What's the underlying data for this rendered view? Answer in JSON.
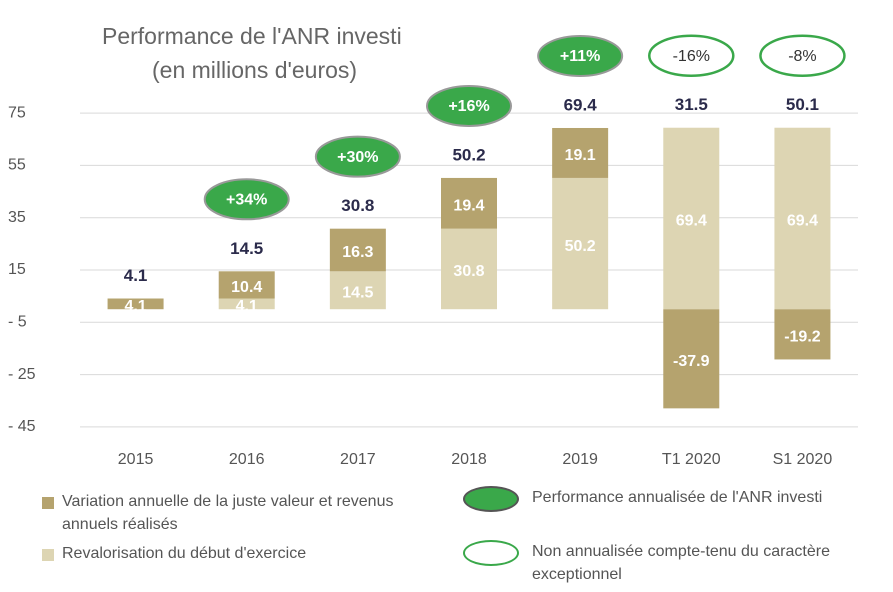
{
  "chart_data": {
    "type": "stacked_bar",
    "title": "Performance de l'ANR investi",
    "subtitle": "(en millions d'euros)",
    "categories": [
      "2015",
      "2016",
      "2017",
      "2018",
      "2019",
      "T1 2020",
      "S1 2020"
    ],
    "series": [
      {
        "name": "Revalorisation du début d'exercice",
        "color": "#ddd5b3",
        "values": [
          null,
          4.1,
          14.5,
          30.8,
          50.2,
          69.4,
          69.4
        ]
      },
      {
        "name": "Variation annuelle de la juste valeur et revenus annuels réalisés",
        "color": "#b5a36e",
        "values": [
          4.1,
          10.4,
          16.3,
          19.4,
          19.1,
          -37.9,
          -19.2
        ]
      }
    ],
    "totals": [
      4.1,
      14.5,
      30.8,
      50.2,
      69.4,
      31.5,
      50.1
    ],
    "badges": [
      null,
      {
        "text": "+34%",
        "style": "filled"
      },
      {
        "text": "+30%",
        "style": "filled"
      },
      {
        "text": "+16%",
        "style": "filled"
      },
      {
        "text": "+11%",
        "style": "filled"
      },
      {
        "text": "-16%",
        "style": "outline"
      },
      {
        "text": "-8%",
        "style": "outline"
      }
    ],
    "badge_legend": {
      "filled": "Performance annualisée de l'ANR investi",
      "outline": "Non annualisée compte-tenu du caractère exceptionnel"
    },
    "badge_color": "#3aa84a",
    "ylim": [
      -50,
      80
    ],
    "yticks": [
      75,
      55,
      35,
      15,
      {
        "value": -5,
        "label": "- 5"
      },
      {
        "value": -25,
        "label": "- 25"
      },
      {
        "value": -45,
        "label": "- 45"
      }
    ],
    "grid": true
  }
}
